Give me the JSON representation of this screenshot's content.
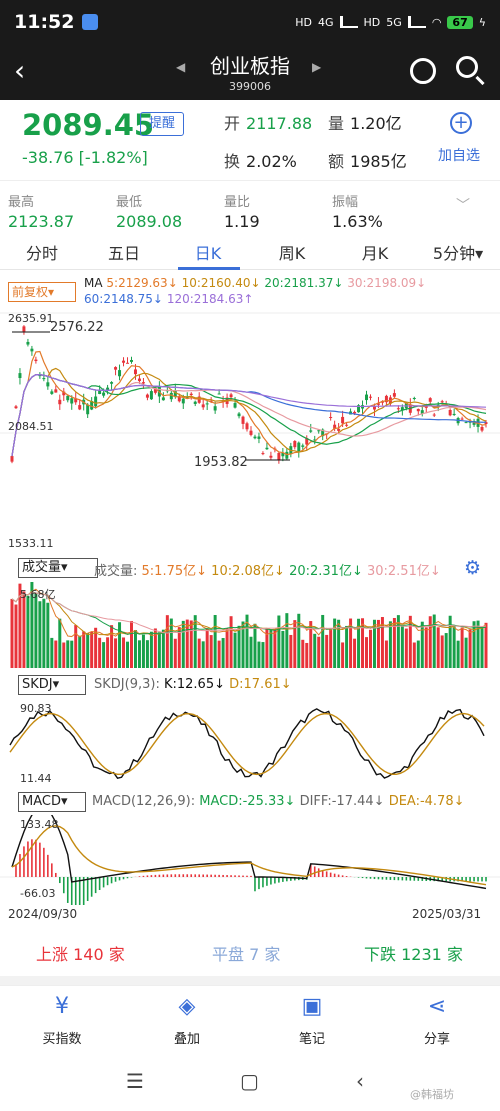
{
  "status_bar": {
    "time": "11:52",
    "net1": "4G",
    "net2": "5G",
    "battery": "67"
  },
  "nav": {
    "title": "创业板指",
    "code": "399006"
  },
  "quote": {
    "price": "2089.45",
    "alert_label": "提醒",
    "change": "-38.76",
    "change_pct": "[-1.82%]",
    "open_label": "开",
    "open": "2117.88",
    "vol_label": "量",
    "vol": "1.20亿",
    "turnover_label": "换",
    "turnover": "2.02%",
    "amount_label": "额",
    "amount": "1985亿",
    "add_label": "加自选"
  },
  "stats": [
    {
      "label": "最高",
      "value": "2123.87"
    },
    {
      "label": "最低",
      "value": "2089.08"
    },
    {
      "label": "量比",
      "value": "1.19"
    },
    {
      "label": "振幅",
      "value": "1.63%"
    }
  ],
  "tabs": [
    "分时",
    "五日",
    "日K",
    "周K",
    "月K",
    "5分钟▾"
  ],
  "kline": {
    "adjust_label": "前复权▾",
    "ma_prefix": "MA",
    "ma5": "5:2129.63↓",
    "ma10": "10:2160.40↓",
    "ma20": "20:2181.37↓",
    "ma30": "30:2198.09↓",
    "ma60": "60:2148.75↓",
    "ma120": "120:2184.63↑",
    "ymax": "2635.91",
    "ymid": "2084.51",
    "ymin": "1533.11",
    "high_annot": "2576.22",
    "low_annot": "1953.82"
  },
  "volume": {
    "selector": "成交量▾",
    "label": "成交量:",
    "v5": "5:1.75亿↓",
    "v10": "10:2.08亿↓",
    "v20": "20:2.31亿↓",
    "v30": "30:2.51亿↓",
    "ymax": "5.68亿"
  },
  "kdj": {
    "selector": "SKDJ▾",
    "params": "SKDJ(9,3):",
    "k": "K:12.65↓",
    "d": "D:17.61↓",
    "ymax": "90.83",
    "ymin": "11.44"
  },
  "macd": {
    "selector": "MACD▾",
    "params": "MACD(12,26,9):",
    "macd": "MACD:-25.33↓",
    "diff": "DIFF:-17.44↓",
    "dea": "DEA:-4.78↓",
    "ymax": "133.48",
    "ymin": "-66.03"
  },
  "dates": {
    "start": "2024/09/30",
    "end": "2025/03/31"
  },
  "breadth": {
    "up": "上涨 140 家",
    "flat": "平盘 7 家",
    "down": "下跌 1231 家"
  },
  "toolbar": [
    "买指数",
    "叠加",
    "笔记",
    "分享"
  ],
  "colors": {
    "up": "#e8333a",
    "down": "#18a04a",
    "accent": "#3b6fd8"
  },
  "watermark": "@韩福坊"
}
